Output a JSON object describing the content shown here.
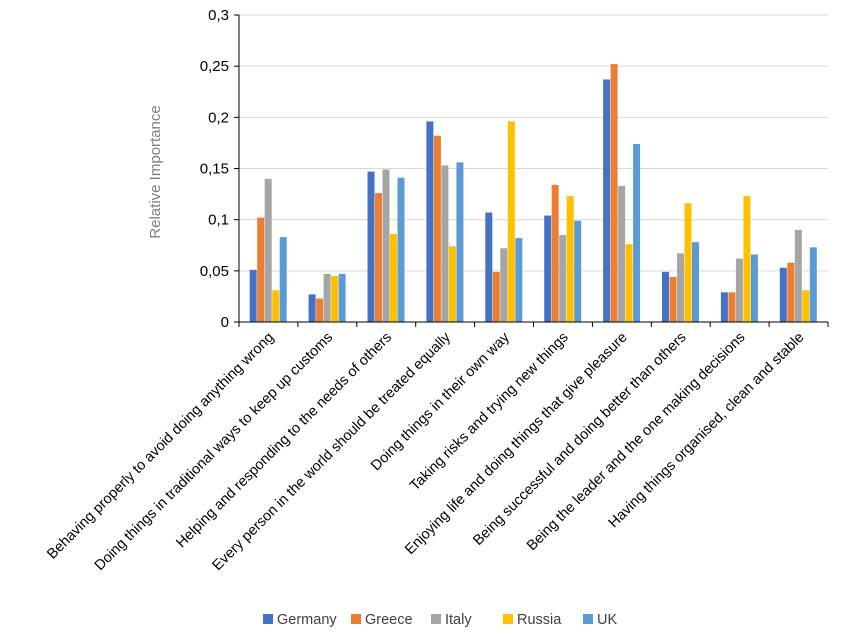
{
  "chart_data": {
    "type": "bar",
    "ylabel": "Relative Importance",
    "xlabel": "",
    "ylim": [
      0,
      0.3
    ],
    "yticks": [
      0,
      0.05,
      0.1,
      0.15,
      0.2,
      0.25,
      0.3
    ],
    "ytick_labels": [
      "0",
      "0,05",
      "0,1",
      "0,15",
      "0,2",
      "0,25",
      "0,3"
    ],
    "grid": true,
    "legend_position": "bottom",
    "categories": [
      "Behaving properly to avoid doing anything wrong",
      "Doing things in traditional ways to keep up customs",
      "Helping and responding to the needs of others",
      "Every person in the world should be treated equally",
      "Doing things in their own way",
      "Taking risks and trying new things",
      "Enjoying life and doing things that give pleasure",
      "Being successful and doing better than others",
      "Being the leader and the one making decisions",
      "Having things organised, clean and stable"
    ],
    "series": [
      {
        "name": "Germany",
        "color": "#4472c4",
        "values": [
          0.051,
          0.027,
          0.147,
          0.196,
          0.107,
          0.104,
          0.237,
          0.049,
          0.029,
          0.053
        ]
      },
      {
        "name": "Greece",
        "color": "#ed7d31",
        "values": [
          0.102,
          0.023,
          0.126,
          0.182,
          0.049,
          0.134,
          0.252,
          0.044,
          0.029,
          0.058
        ]
      },
      {
        "name": "Italy",
        "color": "#a5a5a5",
        "values": [
          0.14,
          0.047,
          0.149,
          0.153,
          0.072,
          0.085,
          0.133,
          0.067,
          0.062,
          0.09
        ]
      },
      {
        "name": "Russia",
        "color": "#ffc000",
        "values": [
          0.031,
          0.045,
          0.086,
          0.074,
          0.196,
          0.123,
          0.076,
          0.116,
          0.123,
          0.031
        ]
      },
      {
        "name": "UK",
        "color": "#5b9bd5",
        "values": [
          0.083,
          0.047,
          0.141,
          0.156,
          0.082,
          0.099,
          0.174,
          0.078,
          0.066,
          0.073
        ]
      }
    ]
  }
}
